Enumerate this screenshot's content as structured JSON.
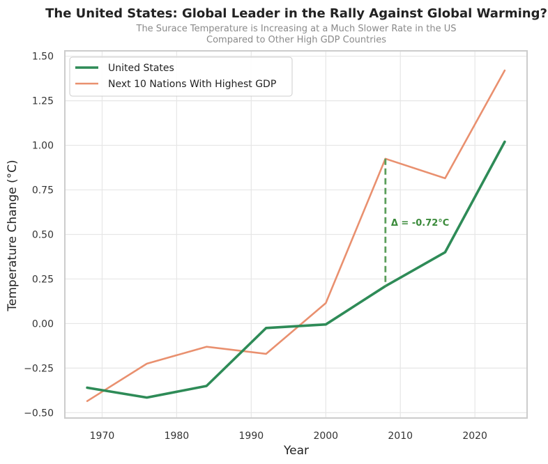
{
  "chart_data": {
    "type": "line",
    "title": "The United States: Global Leader in the Rally Against Global Warming?",
    "subtitle_lines": [
      "The Surace Temperature is Increasing at a Much Slower Rate in the US",
      "Compared to Other High GDP Countries"
    ],
    "xlabel": "Year",
    "ylabel": "Temperature Change (°C)",
    "xlim": [
      1965,
      2027
    ],
    "ylim": [
      -0.53,
      1.53
    ],
    "x_ticks": [
      1970,
      1980,
      1990,
      2000,
      2010,
      2020
    ],
    "y_ticks": [
      -0.5,
      -0.25,
      0.0,
      0.25,
      0.5,
      0.75,
      1.0,
      1.25,
      1.5
    ],
    "y_tick_labels": [
      "−0.50",
      "−0.25",
      "0.00",
      "0.25",
      "0.50",
      "0.75",
      "1.00",
      "1.25",
      "1.50"
    ],
    "grid": true,
    "legend_position": "top-left",
    "x": [
      1968,
      1976,
      1984,
      1992,
      2000,
      2008,
      2016,
      2024
    ],
    "series": [
      {
        "name": "United States",
        "color": "#2e8b57",
        "values": [
          -0.36,
          -0.415,
          -0.35,
          -0.025,
          -0.005,
          0.21,
          0.4,
          1.02
        ]
      },
      {
        "name": "Next 10 Nations With Highest GDP",
        "color": "#e9906f",
        "values": [
          -0.435,
          -0.225,
          -0.13,
          -0.17,
          0.115,
          0.925,
          0.815,
          1.42
        ]
      }
    ],
    "annotation": {
      "text": "Δ = -0.72°C",
      "x": 2008,
      "from": 0.21,
      "to": 0.925,
      "color": "#3a8a3a"
    }
  }
}
